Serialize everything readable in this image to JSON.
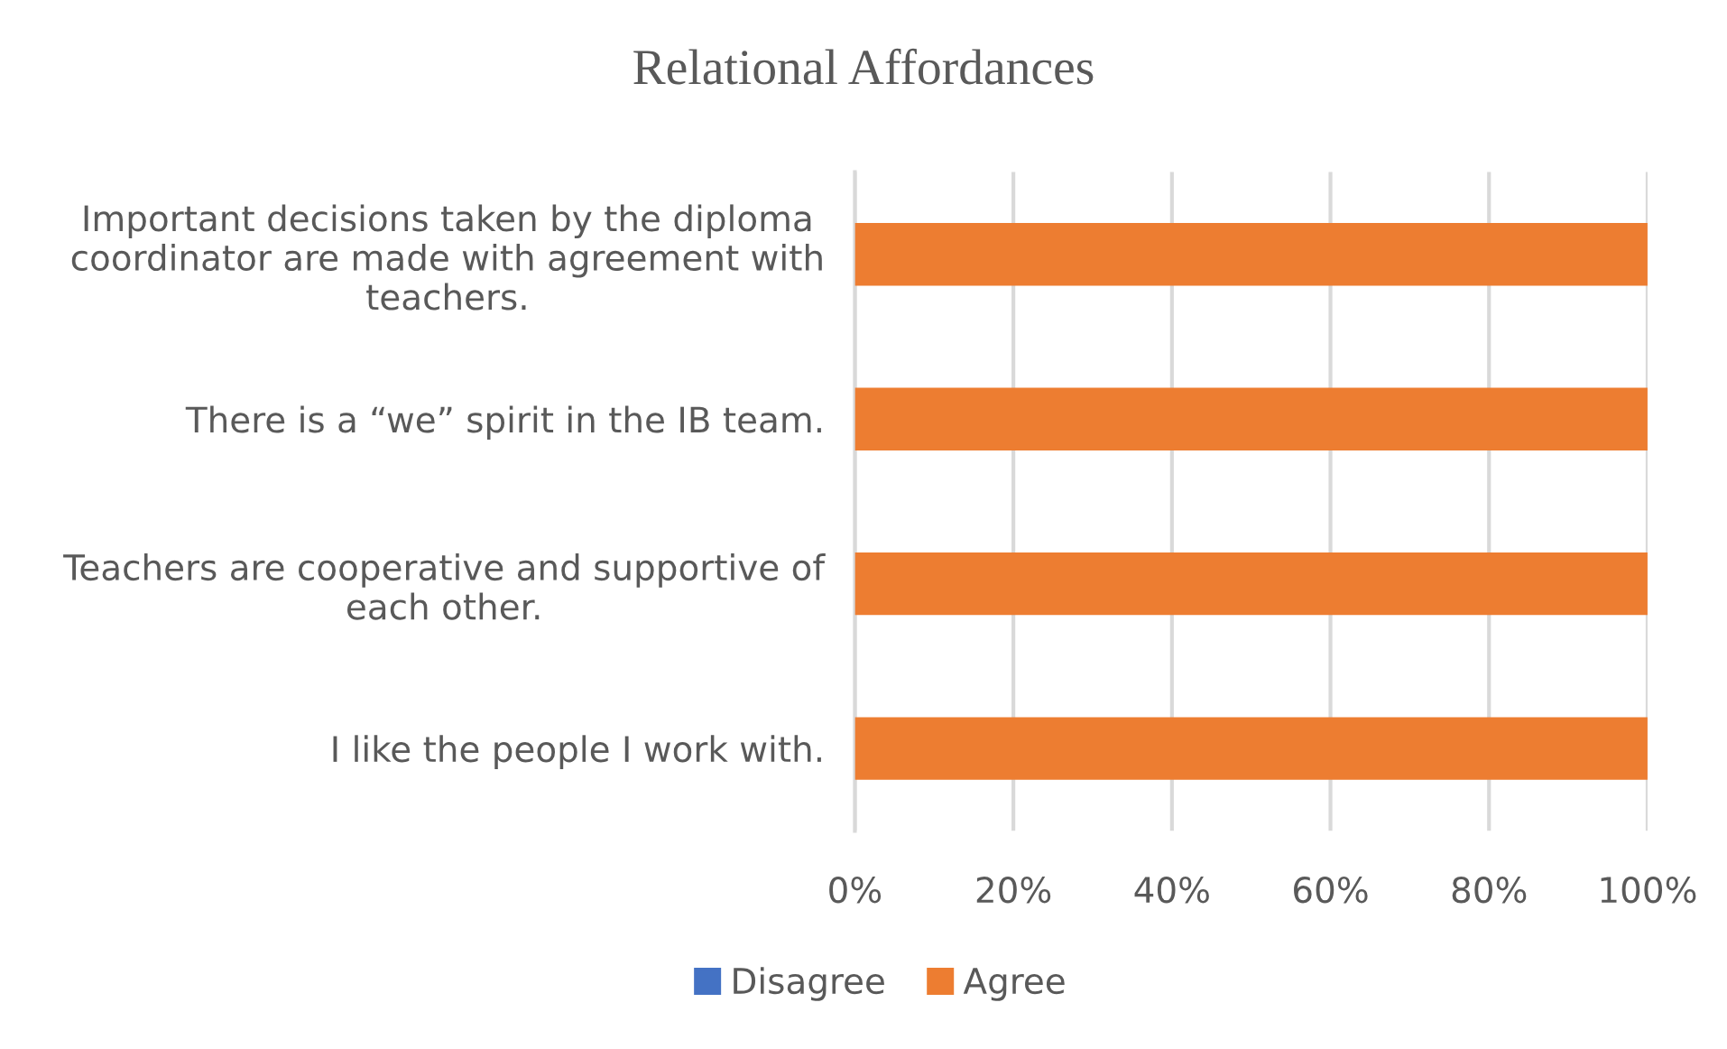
{
  "chart_data": {
    "type": "bar",
    "orientation": "horizontal",
    "stacked": true,
    "title": "Relational Affordances",
    "categories": [
      "Important decisions taken by the diploma\ncoordinator are made with agreement with\nteachers.",
      "There is a “we” spirit in the IB team.",
      "Teachers are cooperative and supportive of\neach other.",
      "I like the people I work with."
    ],
    "series": [
      {
        "name": "Disagree",
        "color": "#4472c4",
        "values": [
          0,
          0,
          0,
          0
        ]
      },
      {
        "name": "Agree",
        "color": "#ed7d31",
        "values": [
          100,
          100,
          100,
          100
        ]
      }
    ],
    "xlim": [
      0,
      100
    ],
    "xticks": [
      {
        "value": 0,
        "label": "0%"
      },
      {
        "value": 20,
        "label": "20%"
      },
      {
        "value": 40,
        "label": "40%"
      },
      {
        "value": 60,
        "label": "60%"
      },
      {
        "value": 80,
        "label": "80%"
      },
      {
        "value": 100,
        "label": "100%"
      }
    ],
    "grid": "x",
    "legend": "bottom"
  }
}
